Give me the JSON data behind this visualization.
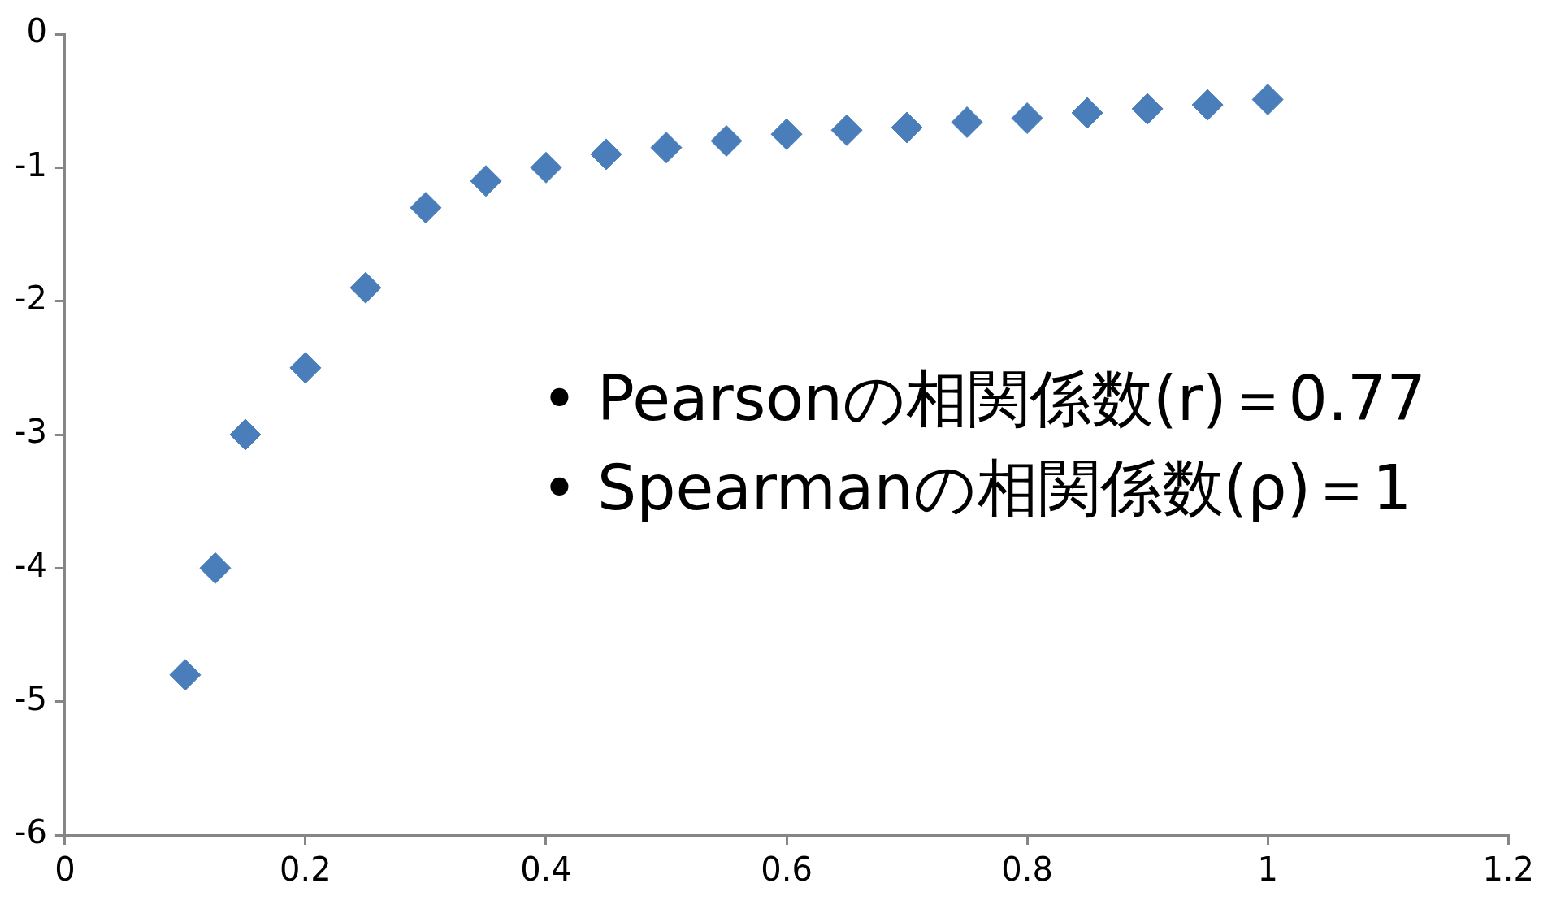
{
  "chart_data": {
    "type": "scatter",
    "x": [
      0.1,
      0.125,
      0.15,
      0.2,
      0.25,
      0.3,
      0.35,
      0.4,
      0.45,
      0.5,
      0.55,
      0.6,
      0.65,
      0.7,
      0.75,
      0.8,
      0.85,
      0.9,
      0.95,
      1.0
    ],
    "series": [
      {
        "color": "#4a7ebb",
        "values": [
          -4.8,
          -4.0,
          -3.0,
          -2.5,
          -1.9,
          -1.3,
          -1.1,
          -1.0,
          -0.9,
          -0.85,
          -0.8,
          -0.75,
          -0.72,
          -0.7,
          -0.66,
          -0.63,
          -0.59,
          -0.56,
          -0.53,
          -0.49
        ]
      }
    ],
    "xlim": [
      0,
      1.2
    ],
    "xticks": [
      0,
      0.2,
      0.4,
      0.6,
      0.8,
      1,
      1.2
    ],
    "ylim": [
      -6,
      0
    ],
    "yticks": [
      -6,
      -5,
      -4,
      -3,
      -2,
      -1,
      0
    ],
    "marker": "diamond",
    "grid": false,
    "legend": false,
    "annotations": [
      "• Pearsonの相関係数(r)＝0.77",
      "• Spearmanの相関係数(ρ)＝1"
    ]
  }
}
